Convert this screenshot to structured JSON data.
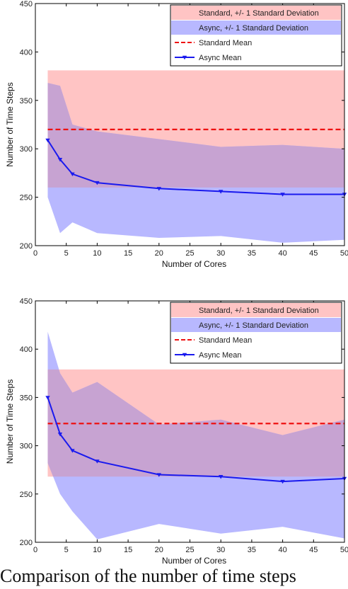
{
  "caption": "Comparison of the number of time steps",
  "legend_labels": [
    "Standard, +/- 1 Standard Deviation",
    "Async, +/- 1 Standard Deviation",
    "Standard Mean",
    "Async Mean"
  ],
  "colors": {
    "standard_band": "#ffc4c4",
    "async_band": "#b8b8ff",
    "overlap": "#c7a3d2",
    "standard_mean": "#ee1111",
    "async_mean": "#1a1aee"
  },
  "chart_data": [
    {
      "type": "line",
      "xlabel": "Number of Cores",
      "ylabel": "Number of Time Steps",
      "xlim": [
        0,
        50
      ],
      "ylim": [
        200,
        450
      ],
      "xticks": [
        0,
        5,
        10,
        15,
        20,
        25,
        30,
        35,
        40,
        45,
        50
      ],
      "yticks": [
        200,
        250,
        300,
        350,
        400,
        450
      ],
      "legend_position": "top-right",
      "standard": {
        "x_range": [
          2,
          50
        ],
        "mean": 320,
        "lower": 260,
        "upper": 381
      },
      "async": {
        "x": [
          2,
          4,
          6,
          10,
          20,
          30,
          40,
          50
        ],
        "mean": [
          309,
          289,
          274,
          265,
          259,
          256,
          253,
          253
        ],
        "upper": [
          368,
          365,
          325,
          318,
          310,
          302,
          304,
          300
        ],
        "lower": [
          250,
          213,
          224,
          213,
          208,
          210,
          203,
          206
        ]
      }
    },
    {
      "type": "line",
      "xlabel": "Number of Cores",
      "ylabel": "Number of Time Steps",
      "xlim": [
        0,
        50
      ],
      "ylim": [
        200,
        450
      ],
      "xticks": [
        0,
        5,
        10,
        15,
        20,
        25,
        30,
        35,
        40,
        45,
        50
      ],
      "yticks": [
        200,
        250,
        300,
        350,
        400,
        450
      ],
      "legend_position": "top-right",
      "standard": {
        "x_range": [
          2,
          50
        ],
        "mean": 323,
        "lower": 268,
        "upper": 379
      },
      "async": {
        "x": [
          2,
          4,
          6,
          10,
          20,
          30,
          40,
          50
        ],
        "mean": [
          350,
          312,
          295,
          284,
          270,
          268,
          263,
          266
        ],
        "upper": [
          418,
          375,
          355,
          366,
          322,
          327,
          311,
          327
        ],
        "lower": [
          282,
          250,
          232,
          203,
          219,
          209,
          216,
          204
        ]
      }
    }
  ]
}
